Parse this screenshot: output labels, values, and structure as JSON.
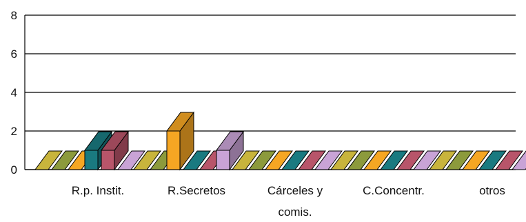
{
  "chart_data": {
    "type": "bar",
    "three_d": true,
    "title": "",
    "xlabel": "",
    "ylabel": "",
    "ylim": [
      0,
      8
    ],
    "yticks": [
      "0",
      "2",
      "4",
      "6",
      "8"
    ],
    "grid": true,
    "legend": "none",
    "categories": [
      [
        "R.p. Instit."
      ],
      [
        "R.Secretos"
      ],
      [
        "Cárceles y",
        "comis."
      ],
      [
        "C.Concentr."
      ],
      [
        "otros"
      ]
    ],
    "series": [
      {
        "color": "#C8B43C",
        "values": [
          0,
          0,
          0,
          0,
          0
        ]
      },
      {
        "color": "#8C9A3C",
        "values": [
          0,
          0,
          0,
          0,
          0
        ]
      },
      {
        "color": "#F5A623",
        "values": [
          0,
          2,
          0,
          0,
          0
        ]
      },
      {
        "color": "#1A7A80",
        "values": [
          1,
          0,
          0,
          0,
          0
        ]
      },
      {
        "color": "#B8556A",
        "values": [
          1,
          0,
          0,
          0,
          0
        ]
      },
      {
        "color": "#C9A3D6",
        "values": [
          0,
          1,
          0,
          0,
          0
        ]
      }
    ]
  }
}
